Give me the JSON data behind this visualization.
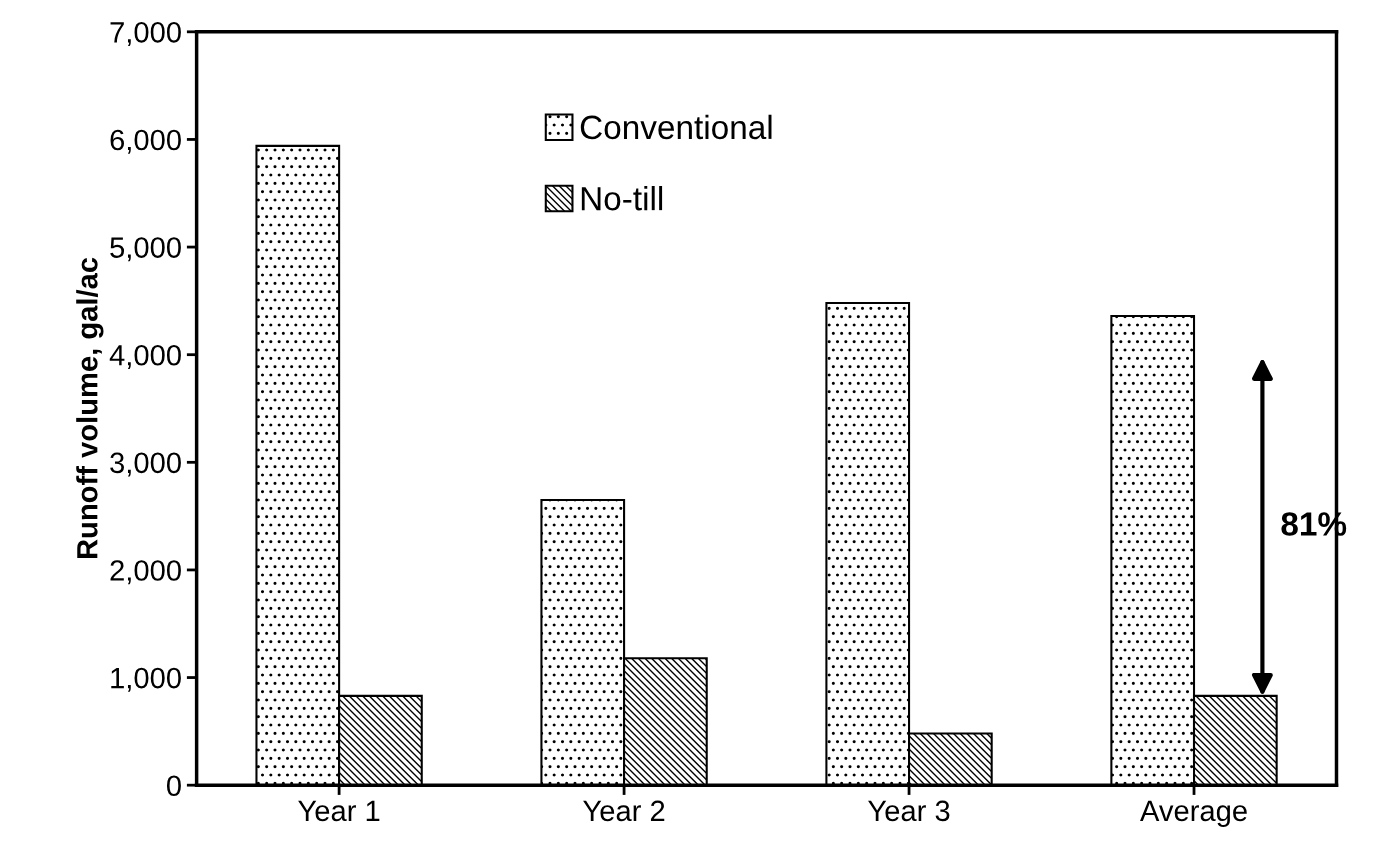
{
  "chart_data": {
    "type": "bar",
    "ylabel": "Runoff volume, gal/ac",
    "categories": [
      "Year 1",
      "Year 2",
      "Year 3",
      "Average"
    ],
    "series": [
      {
        "name": "Conventional",
        "color": "#000000",
        "values": [
          5940,
          2650,
          4480,
          4360
        ]
      },
      {
        "name": "No-till",
        "color": "#000000",
        "values": [
          830,
          1180,
          480,
          830
        ]
      }
    ],
    "ylim": [
      0,
      7000
    ],
    "yticks": [
      {
        "value": 0,
        "label": "0"
      },
      {
        "value": 1000,
        "label": "1,000"
      },
      {
        "value": 2000,
        "label": "2,000"
      },
      {
        "value": 3000,
        "label": "3,000"
      },
      {
        "value": 4000,
        "label": "4,000"
      },
      {
        "value": 5000,
        "label": "5,000"
      },
      {
        "value": 6000,
        "label": "6,000"
      },
      {
        "value": 7000,
        "label": "7,000"
      }
    ],
    "annotations": [
      "81%"
    ],
    "legend": "top",
    "grid": false
  }
}
